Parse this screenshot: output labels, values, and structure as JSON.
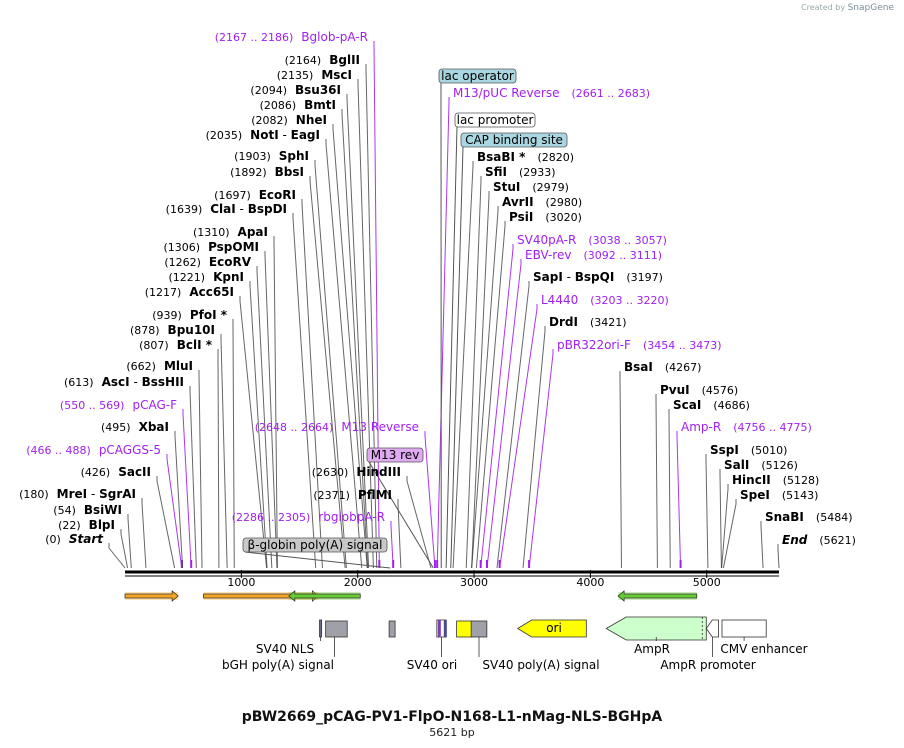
{
  "title": "pBW2669_pCAG-PV1-FlpO-N168-L1-nMag-NLS-BGHpA",
  "subtitle": "5621 bp",
  "credit": {
    "prefix": "Created by",
    "brand": "SnapGene"
  },
  "sequence_length": 5621,
  "colors": {
    "enzyme": "#000000",
    "primer": "#a020f0",
    "feature_line": "#333333",
    "backbone": "#000000"
  },
  "ruler": [
    {
      "pos": 1000,
      "label": "1000"
    },
    {
      "pos": 2000,
      "label": "2000"
    },
    {
      "pos": 3000,
      "label": "3000"
    },
    {
      "pos": 4000,
      "label": "4000"
    },
    {
      "pos": 5000,
      "label": "5000"
    }
  ],
  "sites": [
    {
      "name": "Start",
      "coord": "(0)",
      "pos": 0,
      "kind": "end"
    },
    {
      "name": "BlpI",
      "coord": "(22)",
      "pos": 22,
      "kind": "enzyme"
    },
    {
      "name": "BsiWI",
      "coord": "(54)",
      "pos": 54,
      "kind": "enzyme"
    },
    {
      "name": "MreI",
      "name2": "SgrAI",
      "coord": "(180)",
      "pos": 180,
      "kind": "enzyme"
    },
    {
      "name": "SacII",
      "coord": "(426)",
      "pos": 426,
      "kind": "enzyme"
    },
    {
      "name": "pCAGGS-5",
      "coord": "(466 .. 488)",
      "pos": 488,
      "kind": "primer"
    },
    {
      "name": "XbaI",
      "coord": "(495)",
      "pos": 495,
      "kind": "enzyme"
    },
    {
      "name": "pCAG-F",
      "coord": "(550 .. 569)",
      "pos": 569,
      "kind": "primer"
    },
    {
      "name": "AscI",
      "name2": "BssHII",
      "coord": "(613)",
      "pos": 613,
      "kind": "enzyme"
    },
    {
      "name": "MluI",
      "coord": "(662)",
      "pos": 662,
      "kind": "enzyme"
    },
    {
      "name": "BclI *",
      "coord": "(807)",
      "pos": 807,
      "kind": "enzyme"
    },
    {
      "name": "Bpu10I",
      "coord": "(878)",
      "pos": 878,
      "kind": "enzyme"
    },
    {
      "name": "PfoI *",
      "coord": "(939)",
      "pos": 939,
      "kind": "enzyme"
    },
    {
      "name": "Acc65I",
      "coord": "(1217)",
      "pos": 1217,
      "kind": "enzyme"
    },
    {
      "name": "KpnI",
      "coord": "(1221)",
      "pos": 1221,
      "kind": "enzyme"
    },
    {
      "name": "EcoRV",
      "coord": "(1262)",
      "pos": 1262,
      "kind": "enzyme"
    },
    {
      "name": "PspOMI",
      "coord": "(1306)",
      "pos": 1306,
      "kind": "enzyme"
    },
    {
      "name": "ApaI",
      "coord": "(1310)",
      "pos": 1310,
      "kind": "enzyme"
    },
    {
      "name": "ClaI",
      "name2": "BspDI",
      "coord": "(1639)",
      "pos": 1639,
      "kind": "enzyme"
    },
    {
      "name": "EcoRI",
      "coord": "(1697)",
      "pos": 1697,
      "kind": "enzyme"
    },
    {
      "name": "BbsI",
      "coord": "(1892)",
      "pos": 1892,
      "kind": "enzyme"
    },
    {
      "name": "SphI",
      "coord": "(1903)",
      "pos": 1903,
      "kind": "enzyme"
    },
    {
      "name": "NotI",
      "name2": "EagI",
      "coord": "(2035)",
      "pos": 2035,
      "kind": "enzyme"
    },
    {
      "name": "NheI",
      "coord": "(2082)",
      "pos": 2082,
      "kind": "enzyme"
    },
    {
      "name": "BmtI",
      "coord": "(2086)",
      "pos": 2086,
      "kind": "enzyme"
    },
    {
      "name": "Bsu36I",
      "coord": "(2094)",
      "pos": 2094,
      "kind": "enzyme"
    },
    {
      "name": "MscI",
      "coord": "(2135)",
      "pos": 2135,
      "kind": "enzyme"
    },
    {
      "name": "BglII",
      "coord": "(2164)",
      "pos": 2164,
      "kind": "enzyme"
    },
    {
      "name": "Bglob-pA-R",
      "coord": "(2167 .. 2186)",
      "pos": 2186,
      "kind": "primer"
    },
    {
      "name": "rbglobpA-R",
      "coord": "(2286 .. 2305)",
      "pos": 2305,
      "kind": "primer"
    },
    {
      "name": "PflMI",
      "coord": "(2371)",
      "pos": 2371,
      "kind": "enzyme"
    },
    {
      "name": "HindIII",
      "coord": "(2630)",
      "pos": 2630,
      "kind": "enzyme"
    },
    {
      "name": "M13 Reverse",
      "coord": "(2648 .. 2664)",
      "pos": 2664,
      "kind": "primer"
    },
    {
      "name": "M13/pUC Reverse",
      "coord": "(2661 .. 2683)",
      "pos": 2683,
      "kind": "primer"
    },
    {
      "name": "BsaBI *",
      "coord": "(2820)",
      "pos": 2820,
      "kind": "enzyme"
    },
    {
      "name": "SfiI",
      "coord": "(2933)",
      "pos": 2933,
      "kind": "enzyme"
    },
    {
      "name": "StuI",
      "coord": "(2979)",
      "pos": 2979,
      "kind": "enzyme"
    },
    {
      "name": "AvrII",
      "coord": "(2980)",
      "pos": 2980,
      "kind": "enzyme"
    },
    {
      "name": "PsiI",
      "coord": "(3020)",
      "pos": 3020,
      "kind": "enzyme"
    },
    {
      "name": "SV40pA-R",
      "coord": "(3038 .. 3057)",
      "pos": 3057,
      "kind": "primer"
    },
    {
      "name": "EBV-rev",
      "coord": "(3092 .. 3111)",
      "pos": 3111,
      "kind": "primer"
    },
    {
      "name": "SapI",
      "name2": "BspQI",
      "coord": "(3197)",
      "pos": 3197,
      "kind": "enzyme"
    },
    {
      "name": "L4440",
      "coord": "(3203 .. 3220)",
      "pos": 3220,
      "kind": "primer"
    },
    {
      "name": "DrdI",
      "coord": "(3421)",
      "pos": 3421,
      "kind": "enzyme"
    },
    {
      "name": "pBR322ori-F",
      "coord": "(3454 .. 3473)",
      "pos": 3473,
      "kind": "primer"
    },
    {
      "name": "BsaI",
      "coord": "(4267)",
      "pos": 4267,
      "kind": "enzyme"
    },
    {
      "name": "PvuI",
      "coord": "(4576)",
      "pos": 4576,
      "kind": "enzyme"
    },
    {
      "name": "ScaI",
      "coord": "(4686)",
      "pos": 4686,
      "kind": "enzyme"
    },
    {
      "name": "Amp-R",
      "coord": "(4756 .. 4775)",
      "pos": 4775,
      "kind": "primer"
    },
    {
      "name": "SspI",
      "coord": "(5010)",
      "pos": 5010,
      "kind": "enzyme"
    },
    {
      "name": "SalI",
      "coord": "(5126)",
      "pos": 5126,
      "kind": "enzyme"
    },
    {
      "name": "HincII",
      "coord": "(5128)",
      "pos": 5128,
      "kind": "enzyme"
    },
    {
      "name": "SpeI",
      "coord": "(5143)",
      "pos": 5143,
      "kind": "enzyme"
    },
    {
      "name": "SnaBI",
      "coord": "(5484)",
      "pos": 5484,
      "kind": "enzyme"
    },
    {
      "name": "End",
      "coord": "(5621)",
      "pos": 5621,
      "kind": "end"
    }
  ],
  "boxed_labels": [
    {
      "text": "lac operator",
      "pos": 2718,
      "fill": "#a9d6e0"
    },
    {
      "text": "lac promoter",
      "pos": 2760,
      "fill": "#ffffff"
    },
    {
      "text": "CAP binding site",
      "pos": 2800,
      "fill": "#a9d6e0"
    },
    {
      "text": "M13 rev",
      "pos": 2650,
      "fill": "#e0aaf0"
    },
    {
      "text": "β-globin poly(A) signal",
      "pos": 2280,
      "fill": "#c8c8c8"
    }
  ],
  "features": [
    {
      "name": "SV40 NLS",
      "start": 1672,
      "end": 1690,
      "fill": "#6b6b8a"
    },
    {
      "name": "bGH poly(A) signal",
      "start": 1690,
      "end": 1910,
      "fill": "#a0a0a8"
    },
    {
      "name": "SV40 ori",
      "start": 2680,
      "end": 2760,
      "fill": "#d9d9d9"
    },
    {
      "name": "SV40 poly(A) signal",
      "start": 2975,
      "end": 3110,
      "fill": "#a0a0a8"
    },
    {
      "name": "ori",
      "start": 3375,
      "end": 3965,
      "fill": "#ffff00"
    },
    {
      "name": "AmpR",
      "start": 4136,
      "end": 4996,
      "fill": "#ccffcc"
    },
    {
      "name": "AmpR promoter",
      "start": 4996,
      "end": 5101,
      "fill": "#ffffff"
    },
    {
      "name": "CMV enhancer",
      "start": 5131,
      "end": 5511,
      "fill": "#ffffff"
    }
  ],
  "primer_arrows": [
    {
      "start": 0,
      "end": 457,
      "dir": "right",
      "fill": "#f5a623"
    },
    {
      "start": 675,
      "end": 1662,
      "dir": "right",
      "fill": "#f5a623"
    },
    {
      "start": 1408,
      "end": 2022,
      "dir": "left",
      "fill": "#66cc33"
    },
    {
      "start": 4238,
      "end": 4914,
      "dir": "left",
      "fill": "#66cc33"
    }
  ]
}
